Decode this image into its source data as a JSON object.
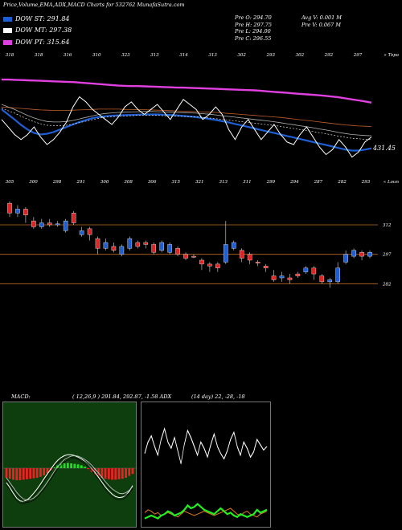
{
  "header": {
    "title": "Price,Volume,EMA,ADX,MACD Charts for 532762",
    "site": "MunafaSutra.com"
  },
  "legend": [
    {
      "label": "DOW ST: 291.84",
      "color": "#1f5fd6"
    },
    {
      "label": "DOW MT: 297.38",
      "color": "#ffffff"
    },
    {
      "label": "DOW PT: 315.64",
      "color": "#e040e0"
    }
  ],
  "info": {
    "col1": [
      "Pre O: 294.70",
      "Pre H: 297.75",
      "Pre L: 294.00",
      "Pre C: 296.55"
    ],
    "col2": [
      "Avg V: 0.001 M",
      "Pre V: 0.067 M"
    ]
  },
  "chart_data": [
    {
      "type": "line",
      "name": "ema-panel",
      "top_labels": [
        "318",
        "318",
        "316",
        "310",
        "323",
        "313",
        "314",
        "313",
        "302",
        "293",
        "302",
        "292",
        "297"
      ],
      "corner_label": "« Topa",
      "value_label": "431.45",
      "series": [
        {
          "name": "DOW PT",
          "color": "#e040e0",
          "values": [
            315.9,
            315.9,
            315.8,
            315.7,
            315.6,
            315.5,
            315.4,
            315.3,
            315.2,
            315.1,
            315.0,
            314.9,
            314.7,
            314.5,
            314.3,
            314.1,
            313.9,
            313.7,
            313.5,
            313.4,
            313.3,
            313.3,
            313.2,
            313.1,
            313.0,
            312.9,
            312.8,
            312.7,
            312.7,
            312.6,
            312.5,
            312.4,
            312.3,
            312.2,
            312.1,
            312.0,
            311.9,
            311.8,
            311.7,
            311.6,
            311.4,
            311.2,
            311.0,
            310.8,
            310.6,
            310.4,
            310.2,
            310.0,
            309.8,
            309.6,
            309.4,
            309.1,
            308.8,
            308.4,
            308.0,
            307.6,
            307.2,
            306.7
          ]
        },
        {
          "name": "EMA long",
          "color": "#c0602a",
          "values": [
            305.0,
            304.8,
            304.6,
            304.4,
            304.2,
            304.0,
            303.8,
            303.7,
            303.6,
            303.6,
            303.6,
            303.7,
            303.8,
            303.9,
            304.0,
            304.1,
            304.1,
            304.1,
            304.1,
            304.0,
            304.0,
            303.9,
            303.9,
            303.8,
            303.7,
            303.6,
            303.5,
            303.4,
            303.3,
            303.2,
            303.1,
            303.0,
            302.9,
            302.8,
            302.6,
            302.4,
            302.2,
            302.0,
            301.8,
            301.6,
            301.4,
            301.2,
            301.0,
            300.8,
            300.5,
            300.2,
            299.9,
            299.6,
            299.3,
            299.0,
            298.7,
            298.4,
            298.1,
            297.8,
            297.6,
            297.4,
            297.3,
            297.2
          ]
        },
        {
          "name": "EMA medium",
          "color": "#b0b0b0",
          "values": [
            306.0,
            305.0,
            304.0,
            302.8,
            301.6,
            300.6,
            299.8,
            299.2,
            299.0,
            299.0,
            299.2,
            299.6,
            300.2,
            300.8,
            301.4,
            302.0,
            302.4,
            302.6,
            302.8,
            302.9,
            303.0,
            303.1,
            303.2,
            303.2,
            303.1,
            303.0,
            302.9,
            302.8,
            302.7,
            302.6,
            302.5,
            302.3,
            302.1,
            301.8,
            301.5,
            301.2,
            300.9,
            300.6,
            300.3,
            300.0,
            299.7,
            299.4,
            299.1,
            298.7,
            298.3,
            297.9,
            297.5,
            297.1,
            296.7,
            296.2,
            295.8,
            295.3,
            294.8,
            294.4,
            294.0,
            293.8,
            293.6,
            293.5
          ]
        },
        {
          "name": "DOW ST",
          "color": "#1f5fd6",
          "values": [
            304.0,
            302.0,
            300.0,
            297.8,
            296.0,
            294.6,
            294.0,
            294.3,
            295.0,
            296.0,
            297.0,
            298.0,
            299.0,
            299.8,
            300.5,
            301.0,
            301.3,
            301.5,
            301.6,
            301.7,
            301.8,
            301.9,
            302.0,
            302.0,
            302.0,
            301.9,
            301.8,
            301.6,
            301.4,
            301.2,
            300.9,
            300.6,
            300.2,
            299.8,
            299.3,
            298.8,
            298.2,
            297.6,
            297.0,
            296.4,
            295.8,
            295.2,
            294.6,
            294.0,
            293.4,
            292.8,
            292.2,
            291.6,
            291.0,
            290.4,
            289.8,
            289.2,
            288.6,
            288.0,
            287.6,
            287.6,
            288.0,
            288.5
          ]
        },
        {
          "name": "DOW MT",
          "color": "#ffffff",
          "values": [
            300.0,
            297.0,
            294.0,
            292.0,
            294.0,
            297.0,
            293.0,
            290.0,
            292.0,
            295.0,
            299.0,
            305.0,
            309.0,
            307.0,
            304.0,
            302.0,
            300.0,
            298.0,
            301.0,
            305.0,
            307.0,
            304.0,
            302.0,
            304.0,
            306.0,
            303.0,
            300.0,
            304.0,
            308.0,
            306.0,
            304.0,
            300.0,
            302.0,
            305.0,
            302.0,
            296.0,
            292.0,
            297.0,
            300.0,
            296.0,
            292.0,
            295.0,
            298.0,
            294.0,
            291.0,
            290.0,
            294.0,
            297.0,
            293.0,
            289.0,
            286.0,
            288.0,
            292.0,
            289.0,
            285.0,
            287.0,
            291.0,
            293.0
          ]
        }
      ],
      "yrange": [
        282,
        322
      ]
    },
    {
      "type": "candlestick",
      "name": "price-panel",
      "top_labels": [
        "305",
        "300",
        "298",
        "291",
        "300",
        "308",
        "306",
        "315",
        "321",
        "313",
        "311",
        "299",
        "294",
        "287",
        "282",
        "293"
      ],
      "corner_label": "« Loun",
      "price_levels": [
        312,
        297,
        282
      ],
      "yrange": [
        276,
        330
      ],
      "candles": [
        {
          "o": 323,
          "c": 318,
          "h": 324,
          "l": 316
        },
        {
          "o": 318,
          "c": 320,
          "h": 322,
          "l": 316
        },
        {
          "o": 320,
          "c": 317,
          "h": 321,
          "l": 313
        },
        {
          "o": 314,
          "c": 311,
          "h": 316,
          "l": 310
        },
        {
          "o": 311,
          "c": 313,
          "h": 315,
          "l": 310
        },
        {
          "o": 313,
          "c": 312,
          "h": 315,
          "l": 311
        },
        {
          "o": 312,
          "c": 312.5,
          "h": 314,
          "l": 311
        },
        {
          "o": 309,
          "c": 314,
          "h": 315,
          "l": 308
        },
        {
          "o": 318,
          "c": 313,
          "h": 319,
          "l": 312
        },
        {
          "o": 307,
          "c": 309,
          "h": 311,
          "l": 306
        },
        {
          "o": 310,
          "c": 307,
          "h": 311,
          "l": 304
        },
        {
          "o": 305,
          "c": 300,
          "h": 306,
          "l": 297
        },
        {
          "o": 300,
          "c": 303,
          "h": 305,
          "l": 299
        },
        {
          "o": 301,
          "c": 299,
          "h": 303,
          "l": 298
        },
        {
          "o": 297,
          "c": 301,
          "h": 302,
          "l": 296
        },
        {
          "o": 300,
          "c": 305,
          "h": 306,
          "l": 299
        },
        {
          "o": 303,
          "c": 301,
          "h": 304,
          "l": 300
        },
        {
          "o": 303,
          "c": 302,
          "h": 304,
          "l": 300
        },
        {
          "o": 302,
          "c": 298,
          "h": 303,
          "l": 297
        },
        {
          "o": 299,
          "c": 303,
          "h": 304,
          "l": 298
        },
        {
          "o": 298,
          "c": 302,
          "h": 303,
          "l": 297
        },
        {
          "o": 300,
          "c": 297,
          "h": 301,
          "l": 296
        },
        {
          "o": 297,
          "c": 295,
          "h": 298,
          "l": 294
        },
        {
          "o": 296,
          "c": 295.5,
          "h": 297,
          "l": 295
        },
        {
          "o": 294,
          "c": 292,
          "h": 295,
          "l": 289
        },
        {
          "o": 292,
          "c": 291,
          "h": 293,
          "l": 288
        },
        {
          "o": 292,
          "c": 290,
          "h": 293,
          "l": 288
        },
        {
          "o": 293,
          "c": 302,
          "h": 314,
          "l": 292
        },
        {
          "o": 300,
          "c": 303,
          "h": 304,
          "l": 299
        },
        {
          "o": 299,
          "c": 295,
          "h": 300,
          "l": 293
        },
        {
          "o": 297,
          "c": 294,
          "h": 298,
          "l": 292
        },
        {
          "o": 293,
          "c": 292.5,
          "h": 294,
          "l": 291
        },
        {
          "o": 291,
          "c": 290,
          "h": 292,
          "l": 288
        },
        {
          "o": 286,
          "c": 284,
          "h": 289,
          "l": 283
        },
        {
          "o": 285,
          "c": 286,
          "h": 288,
          "l": 283
        },
        {
          "o": 285,
          "c": 284,
          "h": 287,
          "l": 282
        },
        {
          "o": 287,
          "c": 286,
          "h": 288,
          "l": 285
        },
        {
          "o": 288,
          "c": 290,
          "h": 291,
          "l": 287
        },
        {
          "o": 290,
          "c": 287,
          "h": 291,
          "l": 284
        },
        {
          "o": 286,
          "c": 283,
          "h": 287,
          "l": 282
        },
        {
          "o": 283,
          "c": 284,
          "h": 285,
          "l": 280
        },
        {
          "o": 283,
          "c": 290,
          "h": 293,
          "l": 282
        },
        {
          "o": 293,
          "c": 297,
          "h": 299,
          "l": 292
        },
        {
          "o": 296,
          "c": 299,
          "h": 300,
          "l": 295
        },
        {
          "o": 298,
          "c": 296,
          "h": 299,
          "l": 294
        },
        {
          "o": 296,
          "c": 298,
          "h": 299,
          "l": 295
        }
      ]
    },
    {
      "type": "bar",
      "name": "macd-panel",
      "label": "MACD:",
      "values_text": "( 12,26,9 ) 291.84,  292.87,  -1.58 ADX",
      "histogram": [
        -2,
        -2.2,
        -2.4,
        -2.5,
        -2.5,
        -2.4,
        -2.3,
        -2.2,
        -2.1,
        -2.0,
        -1.8,
        -1.5,
        -1.0,
        -0.5,
        0.2,
        0.6,
        0.9,
        1.0,
        1.1,
        1.0,
        0.9,
        0.8,
        0.6,
        0.3,
        -0.2,
        -0.8,
        -1.3,
        -1.7,
        -2.0,
        -2.2,
        -2.3,
        -2.4,
        -2.4,
        -2.3,
        -2.2,
        -2.0,
        -1.6,
        -1.2
      ],
      "line1": [
        -3.0,
        -4.0,
        -5.2,
        -6.2,
        -6.8,
        -6.9,
        -6.6,
        -6.0,
        -5.2,
        -4.3,
        -3.3,
        -2.2,
        -1.2,
        -0.2,
        0.8,
        1.6,
        2.2,
        2.6,
        2.8,
        2.8,
        2.6,
        2.3,
        1.9,
        1.4,
        0.8,
        0.0,
        -0.9,
        -1.9,
        -2.9,
        -3.9,
        -4.7,
        -5.4,
        -5.9,
        -6.1,
        -6.0,
        -5.6,
        -4.8,
        -3.6
      ],
      "line2": [
        -2.0,
        -3.0,
        -4.0,
        -5.0,
        -5.8,
        -6.4,
        -6.6,
        -6.5,
        -6.2,
        -5.6,
        -4.8,
        -3.9,
        -2.9,
        -1.8,
        -0.7,
        0.3,
        1.1,
        1.8,
        2.2,
        2.5,
        2.6,
        2.5,
        2.2,
        1.8,
        1.3,
        0.6,
        -0.2,
        -1.0,
        -1.9,
        -2.8,
        -3.6,
        -4.3,
        -4.8,
        -5.2,
        -5.3,
        -5.1,
        -4.6,
        -3.8
      ]
    },
    {
      "type": "line",
      "name": "adx-panel",
      "values_text": "(14  day) 22,  -28,  -18",
      "white": [
        42,
        55,
        62,
        50,
        40,
        58,
        70,
        55,
        48,
        60,
        45,
        30,
        52,
        68,
        60,
        50,
        40,
        55,
        48,
        38,
        52,
        64,
        50,
        42,
        36,
        45,
        58,
        66,
        50,
        40,
        55,
        48,
        38,
        44,
        58,
        52,
        46,
        50
      ],
      "orange": [
        14,
        18,
        16,
        12,
        14,
        10,
        12,
        14,
        12,
        10,
        8,
        12,
        16,
        14,
        12,
        10,
        12,
        14,
        16,
        14,
        12,
        10,
        12,
        14,
        16,
        18,
        20,
        16,
        12,
        10,
        14,
        16,
        12,
        10,
        8,
        12,
        14,
        16
      ],
      "green": [
        6,
        8,
        10,
        8,
        6,
        10,
        12,
        16,
        14,
        10,
        12,
        14,
        18,
        24,
        20,
        22,
        26,
        22,
        18,
        16,
        14,
        12,
        16,
        20,
        16,
        12,
        14,
        10,
        8,
        12,
        10,
        8,
        10,
        12,
        18,
        14,
        16,
        18
      ]
    }
  ]
}
